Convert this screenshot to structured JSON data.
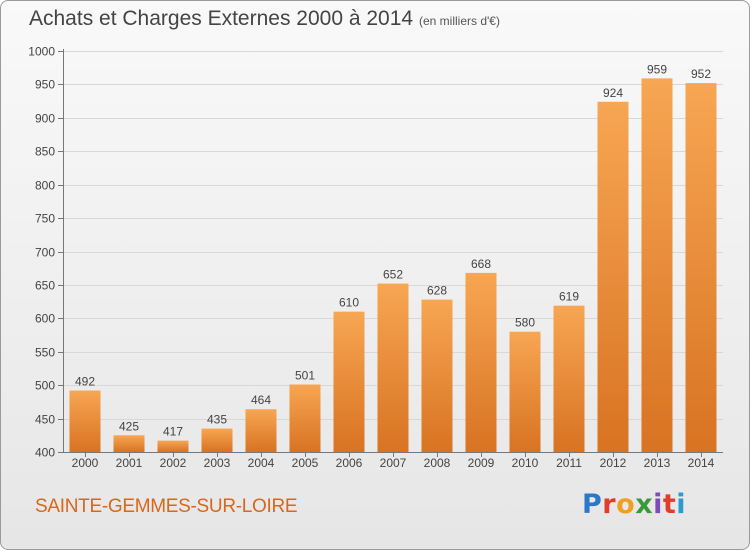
{
  "header": {
    "title": "Achats et Charges Externes 2000 à 2014",
    "subtitle": "(en milliers d'€)"
  },
  "footer": {
    "commune": "SAINTE-GEMMES-SUR-LOIRE",
    "logo_letters": [
      {
        "ch": "P",
        "color": "#2b78c8"
      },
      {
        "ch": "r",
        "color": "#e23c2a"
      },
      {
        "ch": "o",
        "color": "#f0a020"
      },
      {
        "ch": "x",
        "color": "#3a9a3a"
      },
      {
        "ch": "i",
        "color": "#7c4cb8"
      },
      {
        "ch": "t",
        "color": "#e23c2a"
      },
      {
        "ch": "i",
        "color": "#2b9ad0"
      }
    ]
  },
  "colors": {
    "bar_light": "#f7a653",
    "bar_dark": "#d87322",
    "axis": "#777777",
    "grid": "#d8d8d8",
    "text": "#444444"
  },
  "chart_data": {
    "type": "bar",
    "categories": [
      "2000",
      "2001",
      "2002",
      "2003",
      "2004",
      "2005",
      "2006",
      "2007",
      "2008",
      "2009",
      "2010",
      "2011",
      "2012",
      "2013",
      "2014"
    ],
    "values": [
      492,
      425,
      417,
      435,
      464,
      501,
      610,
      652,
      628,
      668,
      580,
      619,
      924,
      959,
      952
    ],
    "title": "Achats et Charges Externes 2000 à 2014",
    "ylabel": "",
    "xlabel": "",
    "ylim": [
      400,
      1000
    ],
    "yticks": [
      400,
      450,
      500,
      550,
      600,
      650,
      700,
      750,
      800,
      850,
      900,
      950,
      1000
    ],
    "grid": true,
    "data_labels": true
  }
}
